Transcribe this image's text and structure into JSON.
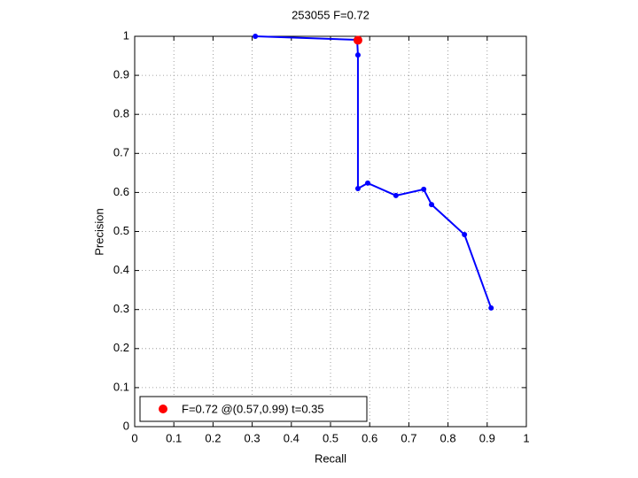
{
  "chart_data": {
    "type": "line",
    "title": "253055 F=0.72",
    "x_label": "Recall",
    "y_label": "Precision",
    "xlim": [
      0,
      1
    ],
    "ylim": [
      0,
      1
    ],
    "xticks": [
      0,
      0.1,
      0.2,
      0.3,
      0.4,
      0.5,
      0.6,
      0.7,
      0.8,
      0.9,
      1
    ],
    "yticks": [
      0,
      0.1,
      0.2,
      0.3,
      0.4,
      0.5,
      0.6,
      0.7,
      0.8,
      0.9,
      1
    ],
    "grid": true,
    "legend": "lower left",
    "series": [
      {
        "type": "line",
        "color": "#0000ff",
        "x": [
          0.308,
          0.568,
          0.57,
          0.57,
          0.595,
          0.667,
          0.738,
          0.758,
          0.842,
          0.91
        ],
        "values": [
          1.0,
          0.991,
          0.952,
          0.61,
          0.624,
          0.592,
          0.608,
          0.569,
          0.492,
          0.304
        ]
      },
      {
        "type": "scatter",
        "name": "F=0.72 @(0.57,0.99) t=0.35",
        "color": "#ff0000",
        "x": [
          0.57
        ],
        "values": [
          0.99
        ]
      }
    ]
  }
}
